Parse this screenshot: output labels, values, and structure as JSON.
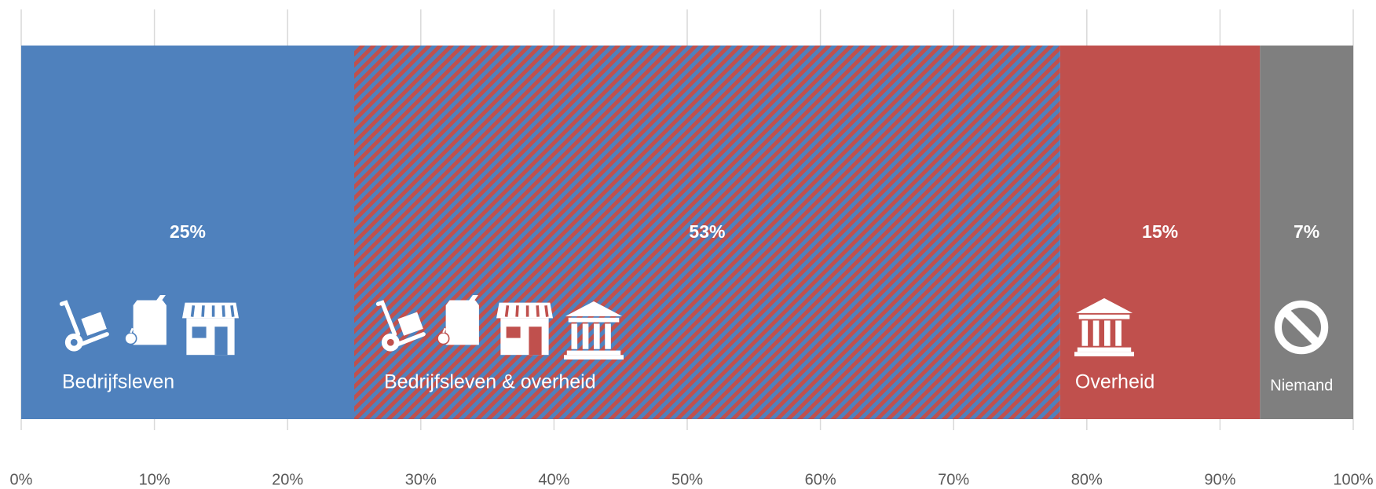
{
  "chart_data": {
    "type": "bar",
    "orientation": "horizontal",
    "stacked": true,
    "series": [
      {
        "name": "Bedrijfsleven",
        "color": "#4f81bd",
        "values": [
          25
        ],
        "value_labels": [
          "25%"
        ]
      },
      {
        "name": "Bedrijfsleven & overheid",
        "colors": [
          "#4f81bd",
          "#c0504d"
        ],
        "values": [
          53
        ],
        "value_labels": [
          "53%"
        ]
      },
      {
        "name": "Overheid",
        "color": "#c0504d",
        "values": [
          15
        ],
        "value_labels": [
          "15%"
        ]
      },
      {
        "name": "Niemand",
        "color": "#7f7f7f",
        "values": [
          7
        ],
        "value_labels": [
          "7%"
        ]
      }
    ],
    "xlim": [
      0,
      100
    ],
    "xticks": [
      {
        "value": 0,
        "label": "0%"
      },
      {
        "value": 10,
        "label": "10%"
      },
      {
        "value": 20,
        "label": "20%"
      },
      {
        "value": 30,
        "label": "30%"
      },
      {
        "value": 40,
        "label": "40%"
      },
      {
        "value": 50,
        "label": "50%"
      },
      {
        "value": 60,
        "label": "60%"
      },
      {
        "value": 70,
        "label": "70%"
      },
      {
        "value": 80,
        "label": "80%"
      },
      {
        "value": 90,
        "label": "90%"
      },
      {
        "value": 100,
        "label": "100%"
      }
    ],
    "grid": true
  }
}
